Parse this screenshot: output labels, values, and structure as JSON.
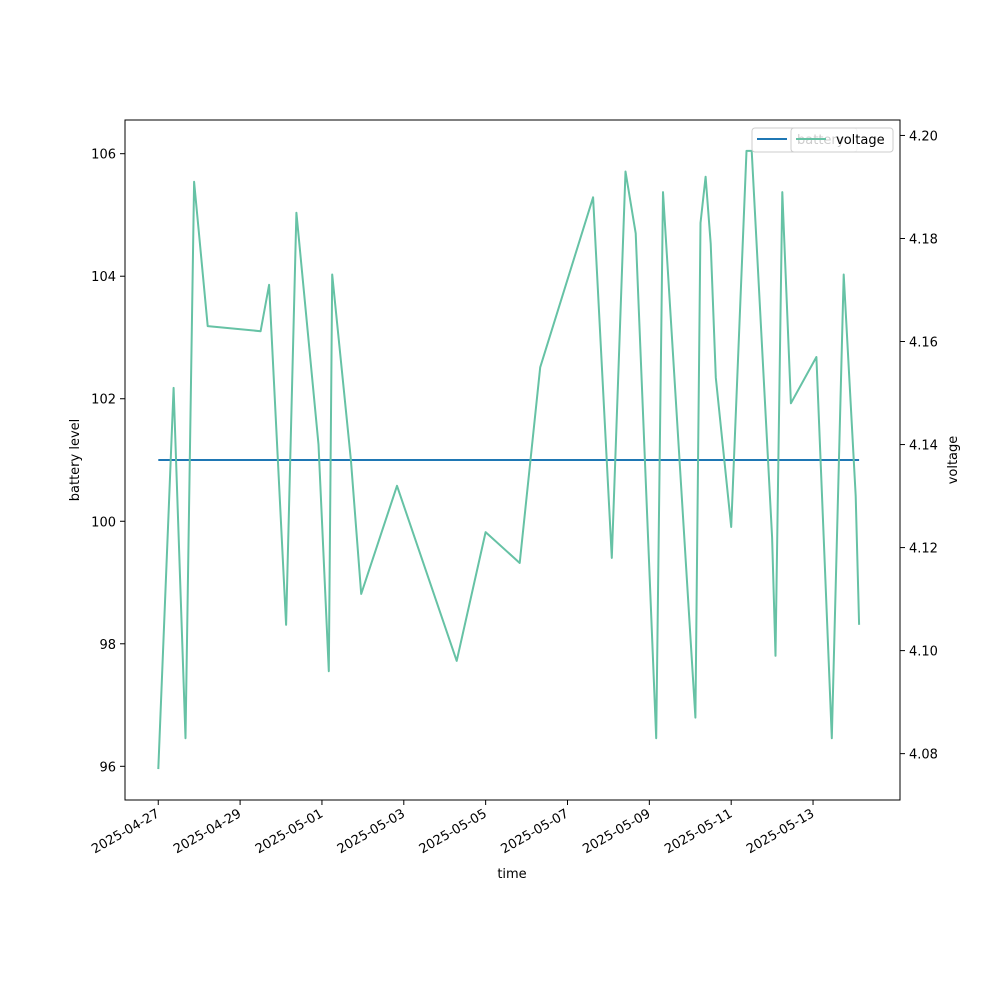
{
  "chart_data": {
    "type": "line",
    "xlabel": "time",
    "ylabel_left": "battery level",
    "ylabel_right": "voltage",
    "xlim": [
      "2025-04-26T04:30",
      "2025-05-15T03:00"
    ],
    "ylim_left": [
      95.45,
      106.55
    ],
    "ylim_right": [
      4.071,
      4.203
    ],
    "x_ticks": [
      "2025-04-27",
      "2025-04-29",
      "2025-05-01",
      "2025-05-03",
      "2025-05-05",
      "2025-05-07",
      "2025-05-09",
      "2025-05-11",
      "2025-05-13"
    ],
    "y_ticks_left": [
      "96",
      "98",
      "100",
      "102",
      "104",
      "106"
    ],
    "y_ticks_right": [
      "4.08",
      "4.10",
      "4.12",
      "4.14",
      "4.16",
      "4.18",
      "4.20"
    ],
    "grid": false,
    "legend_placement": "upper-right",
    "series": [
      {
        "name": "battery",
        "axis": "left",
        "color": "#1f77b4",
        "x": [
          "2025-04-27T00:00",
          "2025-05-14T03:00"
        ],
        "y": [
          101,
          101
        ]
      },
      {
        "name": "voltage",
        "axis": "right",
        "color": "#66c2a5",
        "x": [
          "2025-04-27T00:00",
          "2025-04-27T09:00",
          "2025-04-27T16:00",
          "2025-04-27T21:00",
          "2025-04-28T05:00",
          "2025-04-29T12:00",
          "2025-04-29T17:00",
          "2025-04-30T03:00",
          "2025-04-30T09:00",
          "2025-04-30T22:00",
          "2025-05-01T04:00",
          "2025-05-01T06:00",
          "2025-05-01T17:00",
          "2025-05-01T23:00",
          "2025-05-02T20:00",
          "2025-05-04T07:00",
          "2025-05-05T00:00",
          "2025-05-05T20:00",
          "2025-05-06T08:00",
          "2025-05-07T15:00",
          "2025-05-08T02:00",
          "2025-05-08T10:00",
          "2025-05-08T16:00",
          "2025-05-09T04:00",
          "2025-05-09T08:00",
          "2025-05-10T03:00",
          "2025-05-10T06:00",
          "2025-05-10T09:00",
          "2025-05-10T12:00",
          "2025-05-10T15:00",
          "2025-05-11T00:00",
          "2025-05-11T09:00",
          "2025-05-11T12:00",
          "2025-05-12T00:00",
          "2025-05-12T02:00",
          "2025-05-12T06:00",
          "2025-05-12T11:00",
          "2025-05-13T02:00",
          "2025-05-13T11:00",
          "2025-05-13T18:00",
          "2025-05-14T01:00",
          "2025-05-14T03:00"
        ],
        "y": [
          4.077,
          4.151,
          4.083,
          4.191,
          4.163,
          4.162,
          4.171,
          4.105,
          4.185,
          4.14,
          4.096,
          4.173,
          4.137,
          4.111,
          4.132,
          4.098,
          4.123,
          4.117,
          4.155,
          4.188,
          4.118,
          4.193,
          4.181,
          4.083,
          4.189,
          4.087,
          4.183,
          4.192,
          4.179,
          4.153,
          4.124,
          4.197,
          4.197,
          4.122,
          4.099,
          4.189,
          4.148,
          4.157,
          4.083,
          4.173,
          4.13,
          4.105
        ]
      }
    ]
  }
}
